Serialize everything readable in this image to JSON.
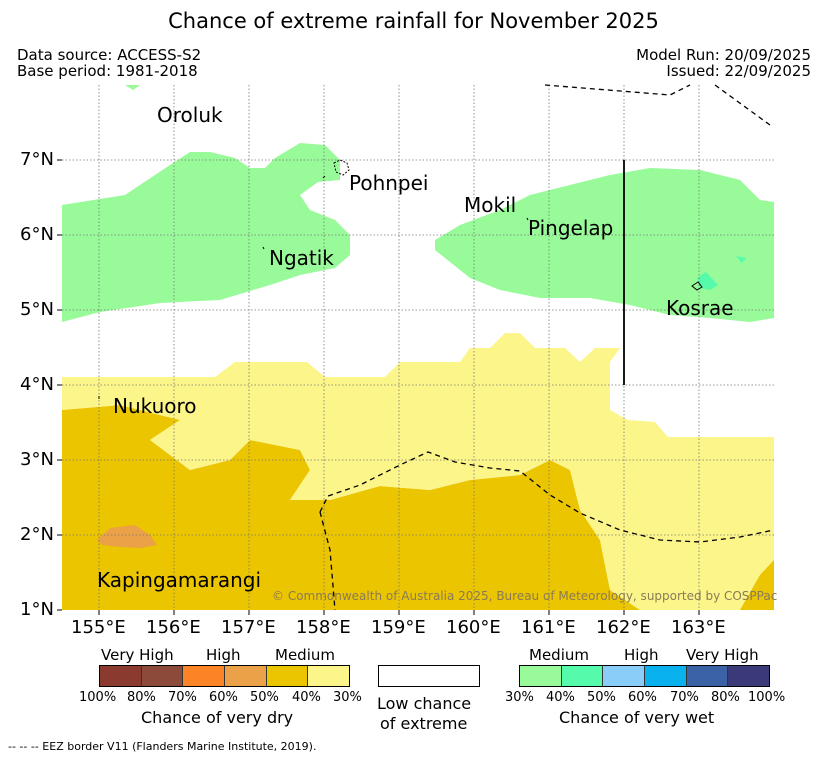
{
  "title": "Chance of extreme rainfall for November 2025",
  "header": {
    "data_source": "Data source: ACCESS-S2",
    "base_period": "Base period: 1981-2018",
    "model_run": "Model Run: 20/09/2025",
    "issued": "Issued: 22/09/2025"
  },
  "axes": {
    "lat_ticks": [
      "7°N",
      "6°N",
      "5°N",
      "4°N",
      "3°N",
      "2°N",
      "1°N"
    ],
    "lon_ticks": [
      "155°E",
      "156°E",
      "157°E",
      "158°E",
      "159°E",
      "160°E",
      "161°E",
      "162°E",
      "163°E"
    ]
  },
  "places": {
    "oroluk": "Oroluk",
    "pohnpei": "Pohnpei",
    "mokil": "Mokil",
    "pingelap": "Pingelap",
    "ngatik": "Ngatik",
    "kosrae": "Kosrae",
    "nukuoro": "Nukuoro",
    "kapingamarangi": "Kapingamarangi"
  },
  "copyright": "© Commonwealth of Australia 2025, Bureau of Meteorology, supported by COSPPac",
  "legend": {
    "dry": {
      "categories": [
        "Very High",
        "High",
        "Medium"
      ],
      "percents": [
        "100%",
        "80%",
        "70%",
        "60%",
        "50%",
        "40%",
        "30%"
      ],
      "title": "Chance of very dry",
      "colors": [
        "#8b3a2f",
        "#8b4a3a",
        "#fc8326",
        "#eba148",
        "#ebc500",
        "#fcf58a"
      ]
    },
    "none": {
      "line1": "Low chance",
      "line2": "of extreme",
      "color": "#ffffff"
    },
    "wet": {
      "categories": [
        "Medium",
        "High",
        "Very High"
      ],
      "percents": [
        "30%",
        "40%",
        "50%",
        "60%",
        "70%",
        "80%",
        "100%"
      ],
      "title": "Chance of very wet",
      "colors": [
        "#99fa99",
        "#55faaa",
        "#8acdf8",
        "#0ab2ed",
        "#3a62a5",
        "#3a3a78"
      ]
    }
  },
  "footnote": "--  --  -- EEZ border V11 (Flanders Marine Institute, 2019).",
  "colors": {
    "wet_medium": "#99fa99",
    "wet_40": "#55faaa",
    "dry_medium": "#ebc500",
    "dry_light": "#fcf58a",
    "dry_60": "#eba148"
  }
}
